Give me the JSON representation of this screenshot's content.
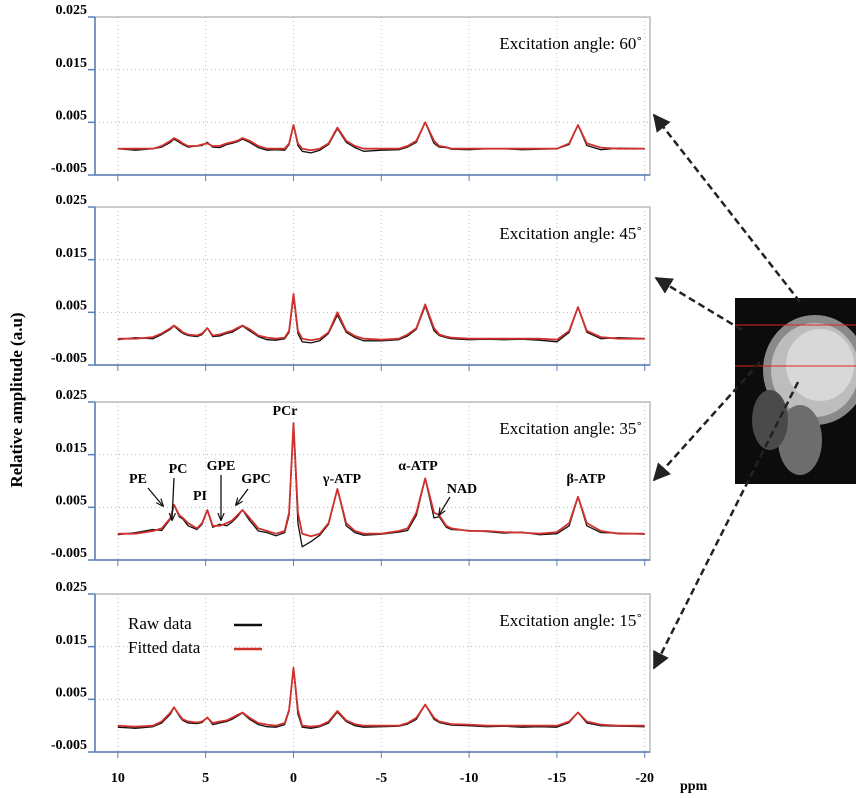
{
  "y_label": "Relative amplitude (a.u)",
  "x_label": "ppm",
  "chart_data": [
    {
      "type": "line",
      "title": "Excitation angle: 60˚",
      "x": [
        10,
        9,
        8,
        7.5,
        7,
        6.8,
        6.5,
        6.3,
        6,
        5.5,
        5.2,
        4.9,
        4.6,
        4.2,
        3.8,
        3.5,
        3.2,
        2.9,
        2.5,
        2,
        1.5,
        1,
        0.5,
        0.25,
        0,
        -0.25,
        -0.5,
        -1,
        -1.5,
        -2,
        -2.5,
        -3,
        -3.5,
        -4,
        -5,
        -6,
        -6.5,
        -7,
        -7.5,
        -8,
        -8.3,
        -8.7,
        -9,
        -10,
        -11,
        -12,
        -13,
        -14,
        -15,
        -15.7,
        -16.2,
        -16.7,
        -17.5,
        -18.5,
        -20
      ],
      "xlim": [
        11.3,
        -20.3
      ],
      "xticks": [
        10,
        5,
        0,
        -5,
        -10,
        -15,
        -20
      ],
      "ylim": [
        -0.005,
        0.025
      ],
      "yticks": [
        -0.005,
        0.005,
        0.015,
        0.025
      ],
      "grid": true,
      "series": [
        {
          "name": "Raw data",
          "color": "#111111",
          "values": [
            0,
            -0.0003,
            0,
            0.0003,
            0.0012,
            0.0018,
            0.0012,
            0.0008,
            0.0003,
            0.0005,
            0.0006,
            0.0012,
            0.0003,
            0.0002,
            0.0008,
            0.001,
            0.0013,
            0.0018,
            0.0012,
            0.0002,
            -0.0003,
            -0.0002,
            -0.0003,
            0.0008,
            0.0045,
            0.0006,
            -0.0005,
            -0.0008,
            -0.0003,
            0.0008,
            0.0038,
            0.0012,
            0.0002,
            -0.0005,
            -0.0003,
            -0.0002,
            0.0003,
            0.0012,
            0.005,
            0.001,
            0.0003,
            0.0002,
            -0.0001,
            -0.0002,
            0,
            0,
            -0.0002,
            -0.0001,
            0,
            0.0008,
            0.0045,
            0.0006,
            -0.0002,
            0.0001,
            0
          ]
        },
        {
          "name": "Fitted data",
          "color": "#d0312d",
          "values": [
            0,
            0,
            0,
            0.0005,
            0.0015,
            0.002,
            0.0015,
            0.001,
            0.0005,
            0.0005,
            0.0008,
            0.001,
            0.0005,
            0.0005,
            0.001,
            0.0012,
            0.0015,
            0.002,
            0.0015,
            0.0005,
            0,
            0,
            0,
            0.001,
            0.0045,
            0.001,
            0,
            -0.0003,
            0,
            0.001,
            0.004,
            0.0015,
            0.0005,
            0,
            0,
            0,
            0.0005,
            0.0015,
            0.005,
            0.0015,
            0.0005,
            0.0003,
            0,
            0,
            0,
            0,
            0,
            0,
            0,
            0.001,
            0.0045,
            0.001,
            0.0002,
            0,
            0
          ]
        }
      ]
    },
    {
      "type": "line",
      "title": "Excitation angle: 45˚",
      "x": [
        10,
        9,
        8,
        7.5,
        7,
        6.8,
        6.5,
        6.3,
        6,
        5.5,
        5.2,
        4.9,
        4.6,
        4.2,
        3.8,
        3.5,
        3.2,
        2.9,
        2.5,
        2,
        1.5,
        1,
        0.5,
        0.25,
        0,
        -0.25,
        -0.5,
        -1,
        -1.5,
        -2,
        -2.5,
        -3,
        -3.5,
        -4,
        -5,
        -6,
        -6.5,
        -7,
        -7.5,
        -8,
        -8.3,
        -8.7,
        -9,
        -10,
        -11,
        -12,
        -13,
        -14,
        -15,
        -15.7,
        -16.2,
        -16.7,
        -17.5,
        -18.5,
        -20
      ],
      "xlim": [
        11.3,
        -20.3
      ],
      "xticks": [
        10,
        5,
        0,
        -5,
        -10,
        -15,
        -20
      ],
      "ylim": [
        -0.005,
        0.025
      ],
      "yticks": [
        -0.005,
        0.005,
        0.015,
        0.025
      ],
      "grid": true,
      "series": [
        {
          "name": "Raw data",
          "color": "#111111",
          "values": [
            -0.0002,
            0.0002,
            0,
            0.0008,
            0.0018,
            0.0024,
            0.0015,
            0.001,
            0.0006,
            0.0004,
            0.0008,
            0.002,
            0.0004,
            0.0005,
            0.001,
            0.0012,
            0.0018,
            0.0024,
            0.0015,
            0.0004,
            -0.0002,
            -0.0003,
            0,
            0.0012,
            0.008,
            0.001,
            -0.0006,
            -0.0008,
            -0.0004,
            0.001,
            0.0045,
            0.0012,
            0.0002,
            -0.0004,
            -0.0004,
            -0.0002,
            0.0005,
            0.0018,
            0.0062,
            0.0015,
            0.0006,
            0.0002,
            0,
            -0.0002,
            -0.0001,
            -0.0002,
            -0.0001,
            -0.0003,
            -0.0006,
            0.0012,
            0.006,
            0.0012,
            0,
            0.0002,
            0
          ]
        },
        {
          "name": "Fitted data",
          "color": "#d0312d",
          "values": [
            0,
            0,
            0.0003,
            0.001,
            0.002,
            0.0025,
            0.0018,
            0.0012,
            0.0008,
            0.0006,
            0.001,
            0.002,
            0.0006,
            0.0008,
            0.0012,
            0.0015,
            0.002,
            0.0025,
            0.0018,
            0.0006,
            0.0002,
            0,
            0.0002,
            0.0015,
            0.0085,
            0.0015,
            0,
            -0.0003,
            0,
            0.0012,
            0.005,
            0.0015,
            0.0005,
            0,
            -0.0002,
            0,
            0.0008,
            0.002,
            0.0065,
            0.002,
            0.0008,
            0.0004,
            0.0002,
            0,
            0,
            0,
            0,
            0,
            -0.0002,
            0.0015,
            0.006,
            0.0015,
            0.0003,
            0,
            0
          ]
        }
      ]
    },
    {
      "type": "line",
      "title": "Excitation angle: 35˚",
      "x": [
        10,
        9,
        8,
        7.5,
        7,
        6.8,
        6.5,
        6.3,
        6,
        5.5,
        5.2,
        4.9,
        4.6,
        4.2,
        3.8,
        3.5,
        3.2,
        2.9,
        2.5,
        2,
        1.5,
        1,
        0.5,
        0.25,
        0,
        -0.25,
        -0.5,
        -1,
        -1.5,
        -2,
        -2.5,
        -3,
        -3.5,
        -4,
        -5,
        -6,
        -6.5,
        -7,
        -7.5,
        -8,
        -8.3,
        -8.7,
        -9,
        -10,
        -11,
        -12,
        -13,
        -14,
        -15,
        -15.7,
        -16.2,
        -16.7,
        -17.5,
        -18.5,
        -20
      ],
      "xlim": [
        11.3,
        -20.3
      ],
      "xticks": [
        10,
        5,
        0,
        -5,
        -10,
        -15,
        -20
      ],
      "ylim": [
        -0.005,
        0.025
      ],
      "yticks": [
        -0.005,
        0.005,
        0.015,
        0.025
      ],
      "grid": true,
      "annotations": [
        "PE",
        "PC",
        "PI",
        "GPE",
        "GPC",
        "PCr",
        "γ-ATP",
        "α-ATP",
        "NAD",
        "β-ATP"
      ],
      "series": [
        {
          "name": "Raw data",
          "color": "#111111",
          "values": [
            -0.0002,
            0.0002,
            0.0008,
            0.0006,
            0.0028,
            0.0055,
            0.0032,
            0.0028,
            0.0015,
            0.0008,
            0.0018,
            0.0045,
            0.0012,
            0.0018,
            0.0015,
            0.0022,
            0.0032,
            0.0045,
            0.0025,
            0.0005,
            0.0002,
            -0.0004,
            0.0002,
            0.0035,
            0.021,
            0.002,
            -0.0025,
            -0.0015,
            -0.0003,
            0.0018,
            0.0085,
            0.0015,
            0.0002,
            -0.0003,
            -0.0001,
            0.0003,
            0.0006,
            0.0035,
            0.0105,
            0.003,
            0.0032,
            0.0012,
            0.0008,
            0.0006,
            0.0004,
            0.0001,
            0.0003,
            -0.0002,
            0,
            0.0015,
            0.007,
            0.0015,
            0.0002,
            0.0001,
            -0.0001
          ]
        },
        {
          "name": "Fitted data",
          "color": "#d0312d",
          "values": [
            0,
            0,
            0.0005,
            0.001,
            0.003,
            0.0055,
            0.0035,
            0.003,
            0.002,
            0.001,
            0.002,
            0.0045,
            0.0015,
            0.0015,
            0.002,
            0.0025,
            0.0035,
            0.0045,
            0.003,
            0.001,
            0.0005,
            0,
            0.0005,
            0.004,
            0.021,
            0.004,
            0,
            -0.0005,
            0,
            0.002,
            0.0085,
            0.002,
            0.0005,
            0,
            0,
            0.0005,
            0.001,
            0.004,
            0.0105,
            0.004,
            0.0035,
            0.0015,
            0.001,
            0.0005,
            0.0005,
            0.0003,
            0.0002,
            0,
            0.0003,
            0.002,
            0.007,
            0.002,
            0.0005,
            0,
            0
          ]
        }
      ]
    },
    {
      "type": "line",
      "title": "Excitation angle: 15˚",
      "legend": "upper left",
      "x": [
        10,
        9,
        8,
        7.5,
        7,
        6.8,
        6.5,
        6.3,
        6,
        5.5,
        5.2,
        4.9,
        4.6,
        4.2,
        3.8,
        3.5,
        3.2,
        2.9,
        2.5,
        2,
        1.5,
        1,
        0.5,
        0.25,
        0,
        -0.25,
        -0.5,
        -1,
        -1.5,
        -2,
        -2.5,
        -3,
        -3.5,
        -4,
        -5,
        -6,
        -6.5,
        -7,
        -7.5,
        -8,
        -8.3,
        -8.7,
        -9,
        -10,
        -11,
        -12,
        -13,
        -14,
        -15,
        -15.7,
        -16.2,
        -16.7,
        -17.5,
        -18.5,
        -20
      ],
      "xlim": [
        11.3,
        -20.3
      ],
      "xticks": [
        10,
        5,
        0,
        -5,
        -10,
        -15,
        -20
      ],
      "ylim": [
        -0.005,
        0.025
      ],
      "yticks": [
        -0.005,
        0.005,
        0.015,
        0.025
      ],
      "grid": true,
      "series": [
        {
          "name": "Raw data",
          "color": "#111111",
          "values": [
            -0.0003,
            -0.0005,
            -0.0002,
            0.0005,
            0.0022,
            0.0035,
            0.0018,
            0.001,
            0.0005,
            0.0004,
            0.0006,
            0.0016,
            0.0002,
            0.0005,
            0.0008,
            0.0012,
            0.0018,
            0.0024,
            0.0012,
            0.0002,
            -0.0002,
            -0.0003,
            0.0002,
            0.0028,
            0.011,
            0.0022,
            -0.0003,
            -0.0005,
            -0.0002,
            0.0005,
            0.0026,
            0.0008,
            0,
            -0.0003,
            -0.0002,
            -0.0001,
            0.0003,
            0.0012,
            0.004,
            0.0012,
            0.0006,
            0.0003,
            0.0001,
            0,
            -0.0002,
            -0.0001,
            -0.0003,
            -0.0002,
            -0.0003,
            0.0006,
            0.0025,
            0.0005,
            0,
            -0.0001,
            -0.0002
          ]
        },
        {
          "name": "Fitted data",
          "color": "#d0312d",
          "values": [
            0,
            -0.0002,
            0,
            0.0008,
            0.0025,
            0.0035,
            0.002,
            0.0012,
            0.0008,
            0.0006,
            0.0008,
            0.0015,
            0.0005,
            0.0008,
            0.001,
            0.0015,
            0.002,
            0.0025,
            0.0015,
            0.0005,
            0.0002,
            0,
            0.0005,
            0.003,
            0.011,
            0.003,
            0,
            -0.0002,
            0,
            0.0008,
            0.0028,
            0.001,
            0.0003,
            0,
            0,
            0,
            0.0005,
            0.0015,
            0.004,
            0.0015,
            0.0008,
            0.0005,
            0.0003,
            0.0002,
            0,
            0,
            0,
            0,
            0,
            0.0008,
            0.0025,
            0.0008,
            0.0002,
            0,
            0
          ]
        }
      ]
    }
  ]
}
